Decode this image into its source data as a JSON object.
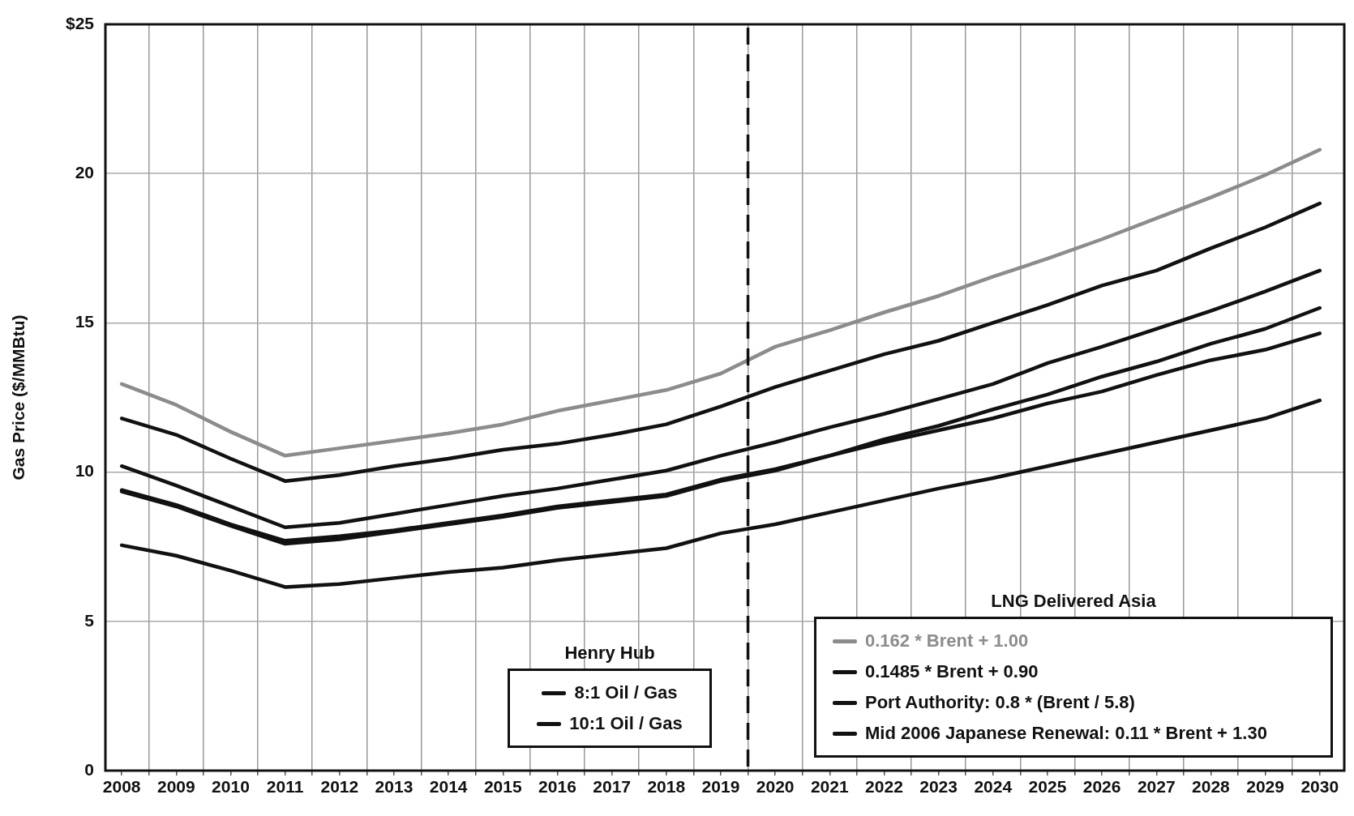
{
  "chart_data": {
    "type": "line",
    "ylabel": "Gas Price ($/MMBtu)",
    "x": [
      2008,
      2009,
      2010,
      2011,
      2012,
      2013,
      2014,
      2015,
      2016,
      2017,
      2018,
      2019,
      2020,
      2021,
      2022,
      2023,
      2024,
      2025,
      2026,
      2027,
      2028,
      2029,
      2030
    ],
    "xlim": [
      2007.7,
      2030.45
    ],
    "xticks": [
      2008,
      {
        "value": 2008.5,
        "label": null
      },
      2009,
      {
        "value": 2009.5,
        "label": null
      },
      2010,
      {
        "value": 2010.5,
        "label": null
      },
      2011,
      {
        "value": 2011.5,
        "label": null
      },
      2012,
      {
        "value": 2012.5,
        "label": null
      },
      2013,
      {
        "value": 2013.5,
        "label": null
      },
      2014,
      {
        "value": 2014.5,
        "label": null
      },
      2015,
      {
        "value": 2015.5,
        "label": null
      },
      2016,
      {
        "value": 2016.5,
        "label": null
      },
      2017,
      {
        "value": 2017.5,
        "label": null
      },
      2018,
      {
        "value": 2018.5,
        "label": null
      },
      2019,
      {
        "value": 2019.5,
        "label": null
      },
      2020,
      {
        "value": 2020.5,
        "label": null
      },
      2021,
      {
        "value": 2021.5,
        "label": null
      },
      2022,
      {
        "value": 2022.5,
        "label": null
      },
      2023,
      {
        "value": 2023.5,
        "label": null
      },
      2024,
      {
        "value": 2024.5,
        "label": null
      },
      2025,
      {
        "value": 2025.5,
        "label": null
      },
      2026,
      {
        "value": 2026.5,
        "label": null
      },
      2027,
      {
        "value": 2027.5,
        "label": null
      },
      2028,
      {
        "value": 2028.5,
        "label": null
      },
      2029,
      {
        "value": 2029.5,
        "label": null
      },
      2030
    ],
    "ylim": [
      0,
      25
    ],
    "yticks": [
      0,
      5,
      10,
      15,
      20,
      {
        "value": 25,
        "label": "$25"
      }
    ],
    "grid": true,
    "legend": "bottom",
    "marker": "none",
    "line_style": "solid",
    "annotations": [
      "Henry Hub",
      "LNG Delivered Asia"
    ],
    "ref_lines": [
      {
        "axis": "x",
        "value": 2019.5,
        "label": null,
        "color": "#111111",
        "line_style": "dashed"
      }
    ],
    "series": [
      {
        "name": "8:1 Oil / Gas",
        "color": "#111111",
        "values": [
          9.35,
          8.85,
          8.2,
          7.6,
          7.75,
          8.0,
          8.25,
          8.5,
          8.8,
          9.0,
          9.2,
          9.7,
          10.05,
          10.55,
          11.1,
          11.55,
          12.1,
          12.6,
          13.2,
          13.7,
          14.3,
          14.8,
          15.5
        ]
      },
      {
        "name": "10:1 Oil / Gas",
        "color": "#111111",
        "values": [
          7.55,
          7.2,
          6.7,
          6.15,
          6.25,
          6.45,
          6.65,
          6.8,
          7.05,
          7.25,
          7.45,
          7.95,
          8.25,
          8.65,
          9.05,
          9.45,
          9.8,
          10.2,
          10.6,
          11.0,
          11.4,
          11.8,
          12.4
        ]
      },
      {
        "name": "0.162 * Brent + 1.00",
        "color": "#8c8c8c",
        "values": [
          12.95,
          12.25,
          11.35,
          10.55,
          10.8,
          11.05,
          11.3,
          11.6,
          12.05,
          12.4,
          12.75,
          13.3,
          14.2,
          14.75,
          15.35,
          15.9,
          16.55,
          17.15,
          17.8,
          18.5,
          19.2,
          19.95,
          20.8
        ]
      },
      {
        "name": "0.1485 * Brent + 0.90",
        "color": "#111111",
        "values": [
          11.8,
          11.25,
          10.45,
          9.7,
          9.9,
          10.2,
          10.45,
          10.75,
          10.95,
          11.25,
          11.6,
          12.2,
          12.85,
          13.4,
          13.95,
          14.4,
          15.0,
          15.6,
          16.25,
          16.75,
          17.5,
          18.2,
          19.0
        ]
      },
      {
        "name": "Port Authority: 0.8 * (Brent / 5.8)",
        "color": "#111111",
        "values": [
          10.2,
          9.55,
          8.85,
          8.15,
          8.3,
          8.6,
          8.9,
          9.2,
          9.45,
          9.75,
          10.05,
          10.55,
          11.0,
          11.5,
          11.95,
          12.45,
          12.95,
          13.65,
          14.2,
          14.8,
          15.4,
          16.05,
          16.75
        ]
      },
      {
        "name": "Mid 2006 Japanese Renewal: 0.11 * Brent + 1.30",
        "color": "#111111",
        "values": [
          9.4,
          8.9,
          8.25,
          7.7,
          7.85,
          8.05,
          8.3,
          8.55,
          8.85,
          9.05,
          9.25,
          9.75,
          10.1,
          10.55,
          11.0,
          11.4,
          11.8,
          12.3,
          12.7,
          13.25,
          13.75,
          14.1,
          14.65
        ]
      }
    ]
  }
}
